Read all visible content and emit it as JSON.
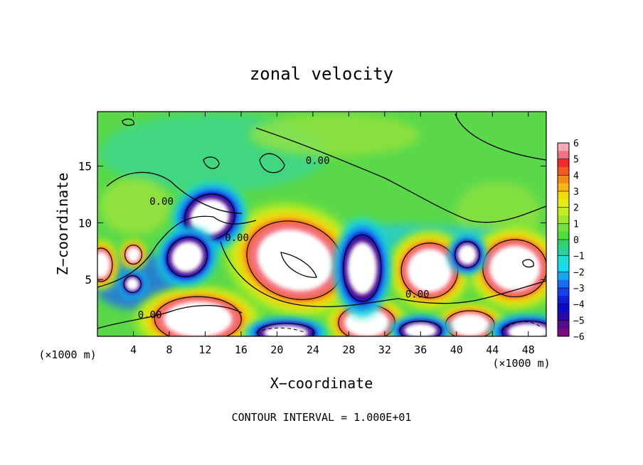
{
  "chart_data": {
    "type": "heatmap",
    "title": "zonal velocity",
    "xlabel": "X−coordinate",
    "ylabel": "Z−coordinate",
    "x_unit_left": "(×1000 m)",
    "x_unit_right": "(×1000 m)",
    "footer": "CONTOUR INTERVAL = 1.000E+01",
    "xlim": [
      0,
      50
    ],
    "ylim": [
      0,
      19.8
    ],
    "x_ticks": [
      4,
      8,
      12,
      16,
      20,
      24,
      28,
      32,
      36,
      40,
      44,
      48
    ],
    "y_ticks": [
      5,
      10,
      15
    ],
    "colorbar": {
      "range": [
        -6,
        6
      ],
      "tick_labels": [
        "6",
        "5",
        "4",
        "3",
        "2",
        "1",
        "0",
        "−1",
        "−2",
        "−3",
        "−4",
        "−5",
        "−6"
      ],
      "bins": [
        {
          "lo": 5.5,
          "hi": 6,
          "color": "#f4a9b3"
        },
        {
          "lo": 5,
          "hi": 5.5,
          "color": "#f2727e"
        },
        {
          "lo": 4.5,
          "hi": 5,
          "color": "#ee2a2a"
        },
        {
          "lo": 4,
          "hi": 4.5,
          "color": "#f25a1e"
        },
        {
          "lo": 3.5,
          "hi": 4,
          "color": "#f58a12"
        },
        {
          "lo": 3,
          "hi": 3.5,
          "color": "#f8b410"
        },
        {
          "lo": 2.5,
          "hi": 3,
          "color": "#f2dc0a"
        },
        {
          "lo": 2,
          "hi": 2.5,
          "color": "#e4ee16"
        },
        {
          "lo": 1.5,
          "hi": 2,
          "color": "#c4ee1e"
        },
        {
          "lo": 1,
          "hi": 1.5,
          "color": "#9be82a"
        },
        {
          "lo": 0.5,
          "hi": 1,
          "color": "#72e23a"
        },
        {
          "lo": 0,
          "hi": 0.5,
          "color": "#4cdc40"
        },
        {
          "lo": -0.5,
          "hi": 0,
          "color": "#32d46a"
        },
        {
          "lo": -1,
          "hi": -0.5,
          "color": "#26d2a0"
        },
        {
          "lo": -1.5,
          "hi": -1,
          "color": "#1ee0d2"
        },
        {
          "lo": -2,
          "hi": -1.5,
          "color": "#18d8f4"
        },
        {
          "lo": -2.5,
          "hi": -2,
          "color": "#14a8f2"
        },
        {
          "lo": -3,
          "hi": -2.5,
          "color": "#1a6cf0"
        },
        {
          "lo": -3.5,
          "hi": -3,
          "color": "#1440ea"
        },
        {
          "lo": -4,
          "hi": -3.5,
          "color": "#101ed8"
        },
        {
          "lo": -4.5,
          "hi": -4,
          "color": "#0a0ac4"
        },
        {
          "lo": -5,
          "hi": -4.5,
          "color": "#2a0aa6"
        },
        {
          "lo": -5.5,
          "hi": -5,
          "color": "#52108e"
        },
        {
          "lo": -6,
          "hi": -5.5,
          "color": "#7a0a7e"
        }
      ]
    },
    "contour_labels": [
      {
        "text": "0.00",
        "x": 23.2,
        "y": 15.2
      },
      {
        "text": "0.00",
        "x": 5.8,
        "y": 11.6
      },
      {
        "text": "0.00",
        "x": 14.2,
        "y": 8.4
      },
      {
        "text": "0.00",
        "x": 34.3,
        "y": 3.4
      },
      {
        "text": "0.00",
        "x": 4.5,
        "y": 1.6
      }
    ],
    "features": [
      {
        "sign": "pos",
        "x": 22,
        "y": 6.7,
        "rx": 5.2,
        "ry": 3.2,
        "rot": 18
      },
      {
        "sign": "pos",
        "x": 37,
        "y": 5.8,
        "rx": 3.0,
        "ry": 2.3,
        "rot": 0
      },
      {
        "sign": "pos",
        "x": 46.5,
        "y": 6.0,
        "rx": 3.4,
        "ry": 2.4,
        "rot": 0
      },
      {
        "sign": "pos",
        "x": 11.2,
        "y": 1.5,
        "rx": 4.6,
        "ry": 1.9,
        "rot": 0
      },
      {
        "sign": "pos",
        "x": 30,
        "y": 1.2,
        "rx": 3.0,
        "ry": 1.5,
        "rot": 0
      },
      {
        "sign": "pos",
        "x": 41.5,
        "y": 1.0,
        "rx": 2.6,
        "ry": 1.2,
        "rot": 0
      },
      {
        "sign": "pos",
        "x": 0.4,
        "y": 6.3,
        "rx": 1.2,
        "ry": 1.4,
        "rot": 0
      },
      {
        "sign": "pos",
        "x": 4,
        "y": 7.2,
        "rx": 0.9,
        "ry": 0.8,
        "rot": 0
      },
      {
        "sign": "neg",
        "x": 12.5,
        "y": 10.5,
        "rx": 2.7,
        "ry": 1.9,
        "rot": -25
      },
      {
        "sign": "neg",
        "x": 10,
        "y": 7.0,
        "rx": 2.2,
        "ry": 1.6,
        "rot": -40
      },
      {
        "sign": "neg",
        "x": 29.5,
        "y": 6.0,
        "rx": 2.0,
        "ry": 2.8,
        "rot": 0
      },
      {
        "sign": "neg",
        "x": 41.2,
        "y": 7.2,
        "rx": 1.3,
        "ry": 1.1,
        "rot": 0
      },
      {
        "sign": "neg",
        "x": 3.9,
        "y": 4.6,
        "rx": 0.9,
        "ry": 0.7,
        "rot": 0
      },
      {
        "sign": "neg",
        "x": 21,
        "y": 0.3,
        "rx": 3.0,
        "ry": 0.8,
        "rot": 0
      },
      {
        "sign": "neg",
        "x": 36,
        "y": 0.5,
        "rx": 2.2,
        "ry": 0.8,
        "rot": 0
      },
      {
        "sign": "neg",
        "x": 48,
        "y": 0.4,
        "rx": 2.8,
        "ry": 0.9,
        "rot": 0
      }
    ],
    "grid": false,
    "legend": "right"
  }
}
